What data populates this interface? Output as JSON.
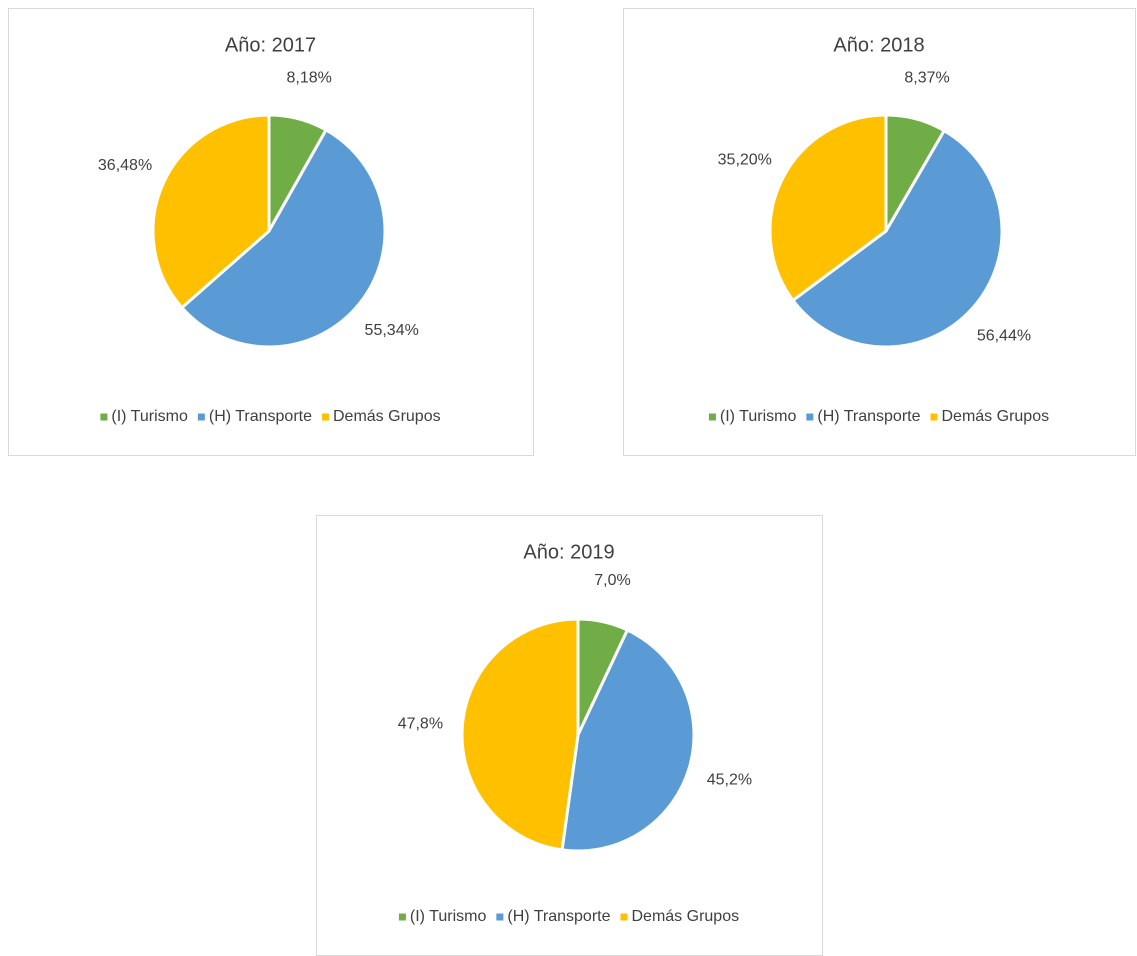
{
  "chart_data": [
    {
      "type": "pie",
      "title": "Año: 2017",
      "categories": [
        "(I) Turismo",
        "(H) Transporte",
        "Demás Grupos"
      ],
      "values": [
        8.18,
        55.34,
        36.48
      ],
      "value_labels": [
        "8,18%",
        "55,34%",
        "36,48%"
      ],
      "colors": [
        "#70ad47",
        "#5b9bd5",
        "#ffc000"
      ],
      "legend": "bottom"
    },
    {
      "type": "pie",
      "title": "Año: 2018",
      "categories": [
        "(I) Turismo",
        "(H) Transporte",
        "Demás Grupos"
      ],
      "values": [
        8.37,
        56.44,
        35.2
      ],
      "value_labels": [
        "8,37%",
        "56,44%",
        "35,20%"
      ],
      "colors": [
        "#70ad47",
        "#5b9bd5",
        "#ffc000"
      ],
      "legend": "bottom"
    },
    {
      "type": "pie",
      "title": "Año: 2019",
      "categories": [
        "(I) Turismo",
        "(H) Transporte",
        "Demás Grupos"
      ],
      "values": [
        7.0,
        45.2,
        47.8
      ],
      "value_labels": [
        "7,0%",
        "45,2%",
        "47,8%"
      ],
      "colors": [
        "#70ad47",
        "#5b9bd5",
        "#ffc000"
      ],
      "legend": "bottom"
    }
  ]
}
